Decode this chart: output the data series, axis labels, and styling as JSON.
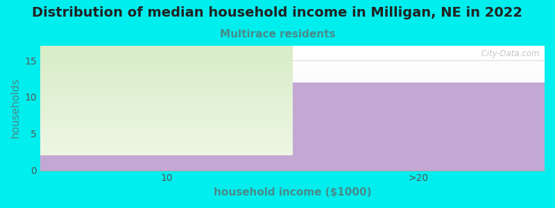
{
  "title": "Distribution of median household income in Milligan, NE in 2022",
  "subtitle": "Multirace residents",
  "categories": [
    "10",
    ">20"
  ],
  "purple_values": [
    2,
    12
  ],
  "green_value": 17,
  "bar_color": "#c4a8d4",
  "green_color_bottom": "#d8edc8",
  "green_color_top": "#f0f8e8",
  "bg_color": "#00eeee",
  "plot_bg_top": "#f5f5f5",
  "plot_bg_bottom": "#ffffff",
  "xlabel": "household income ($1000)",
  "ylabel": "households",
  "ylim": [
    0,
    17
  ],
  "yticks": [
    0,
    5,
    10,
    15
  ],
  "title_fontsize": 14,
  "subtitle_fontsize": 11,
  "tick_fontsize": 10,
  "label_fontsize": 11,
  "title_color": "#222222",
  "subtitle_color": "#4a8a8a",
  "ylabel_color": "#4a8a8a",
  "xlabel_color": "#4a8a8a",
  "tick_color": "#555555",
  "watermark": "  City-Data.com"
}
